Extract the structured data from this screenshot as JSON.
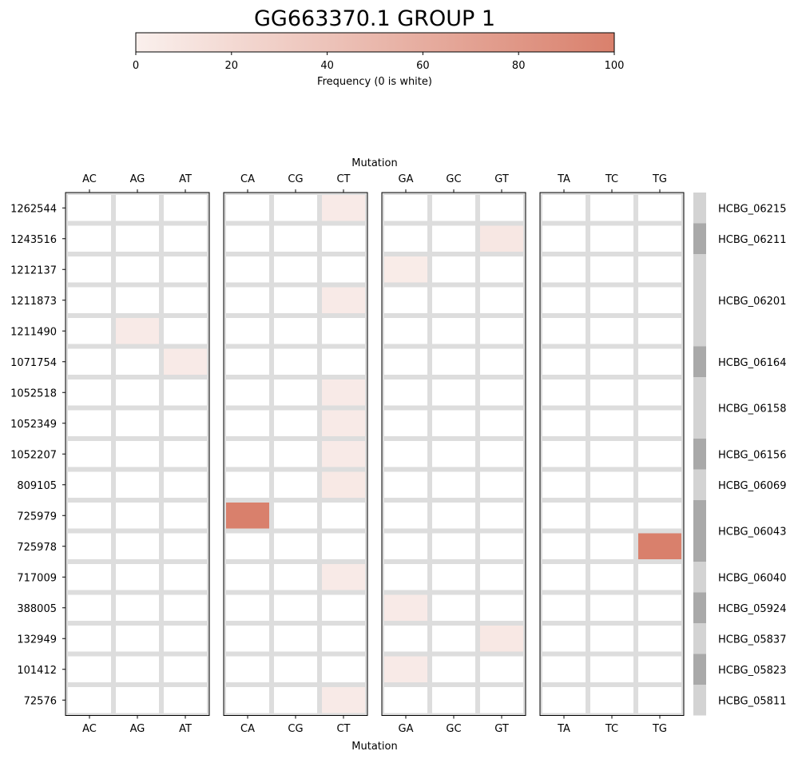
{
  "chart_data": {
    "type": "heatmap",
    "title": "GG663370.1 GROUP 1",
    "colorbar": {
      "label": "Frequency (0 is white)",
      "min": 0,
      "max": 100,
      "ticks": [
        0,
        20,
        40,
        60,
        80,
        100
      ],
      "color_low": "#ffffff",
      "color_high": "#d9806c"
    },
    "xlabel": "Mutation",
    "panels": [
      {
        "columns": [
          "AC",
          "AG",
          "AT"
        ]
      },
      {
        "columns": [
          "CA",
          "CG",
          "CT"
        ]
      },
      {
        "columns": [
          "GA",
          "GC",
          "GT"
        ]
      },
      {
        "columns": [
          "TA",
          "TC",
          "TG"
        ]
      }
    ],
    "rows": [
      "1262544",
      "1243516",
      "1212137",
      "1211873",
      "1211490",
      "1071754",
      "1052518",
      "1052349",
      "1052207",
      "809105",
      "725979",
      "725978",
      "717009",
      "388005",
      "132949",
      "101412",
      "72576"
    ],
    "cells": [
      {
        "row": "1262544",
        "mutation": "CT",
        "value": 5
      },
      {
        "row": "1243516",
        "mutation": "GT",
        "value": 8
      },
      {
        "row": "1212137",
        "mutation": "GA",
        "value": 4
      },
      {
        "row": "1211873",
        "mutation": "CT",
        "value": 5
      },
      {
        "row": "1211490",
        "mutation": "AG",
        "value": 5
      },
      {
        "row": "1071754",
        "mutation": "AT",
        "value": 5
      },
      {
        "row": "1052518",
        "mutation": "CT",
        "value": 5
      },
      {
        "row": "1052349",
        "mutation": "CT",
        "value": 5
      },
      {
        "row": "1052207",
        "mutation": "CT",
        "value": 5
      },
      {
        "row": "809105",
        "mutation": "CT",
        "value": 6
      },
      {
        "row": "725979",
        "mutation": "CA",
        "value": 100
      },
      {
        "row": "725978",
        "mutation": "TG",
        "value": 100
      },
      {
        "row": "717009",
        "mutation": "CT",
        "value": 5
      },
      {
        "row": "388005",
        "mutation": "GA",
        "value": 5
      },
      {
        "row": "132949",
        "mutation": "GT",
        "value": 7
      },
      {
        "row": "101412",
        "mutation": "GA",
        "value": 5
      },
      {
        "row": "72576",
        "mutation": "CT",
        "value": 5
      }
    ],
    "gene_groups": [
      {
        "gene": "HCBG_06215",
        "rows": [
          "1262544"
        ],
        "shade": "#d3d3d3"
      },
      {
        "gene": "HCBG_06211",
        "rows": [
          "1243516"
        ],
        "shade": "#a9a9a9"
      },
      {
        "gene": "HCBG_06201",
        "rows": [
          "1212137",
          "1211873",
          "1211490"
        ],
        "shade": "#d3d3d3"
      },
      {
        "gene": "HCBG_06164",
        "rows": [
          "1071754"
        ],
        "shade": "#a9a9a9"
      },
      {
        "gene": "HCBG_06158",
        "rows": [
          "1052518",
          "1052349"
        ],
        "shade": "#d3d3d3"
      },
      {
        "gene": "HCBG_06156",
        "rows": [
          "1052207"
        ],
        "shade": "#a9a9a9"
      },
      {
        "gene": "HCBG_06069",
        "rows": [
          "809105"
        ],
        "shade": "#d3d3d3"
      },
      {
        "gene": "HCBG_06043",
        "rows": [
          "725979",
          "725978"
        ],
        "shade": "#a9a9a9"
      },
      {
        "gene": "HCBG_06040",
        "rows": [
          "717009"
        ],
        "shade": "#d3d3d3"
      },
      {
        "gene": "HCBG_05924",
        "rows": [
          "388005"
        ],
        "shade": "#a9a9a9"
      },
      {
        "gene": "HCBG_05837",
        "rows": [
          "132949"
        ],
        "shade": "#d3d3d3"
      },
      {
        "gene": "HCBG_05823",
        "rows": [
          "101412"
        ],
        "shade": "#a9a9a9"
      },
      {
        "gene": "HCBG_05811",
        "rows": [
          "72576"
        ],
        "shade": "#d3d3d3"
      }
    ],
    "grid_color": "#dddddd"
  }
}
